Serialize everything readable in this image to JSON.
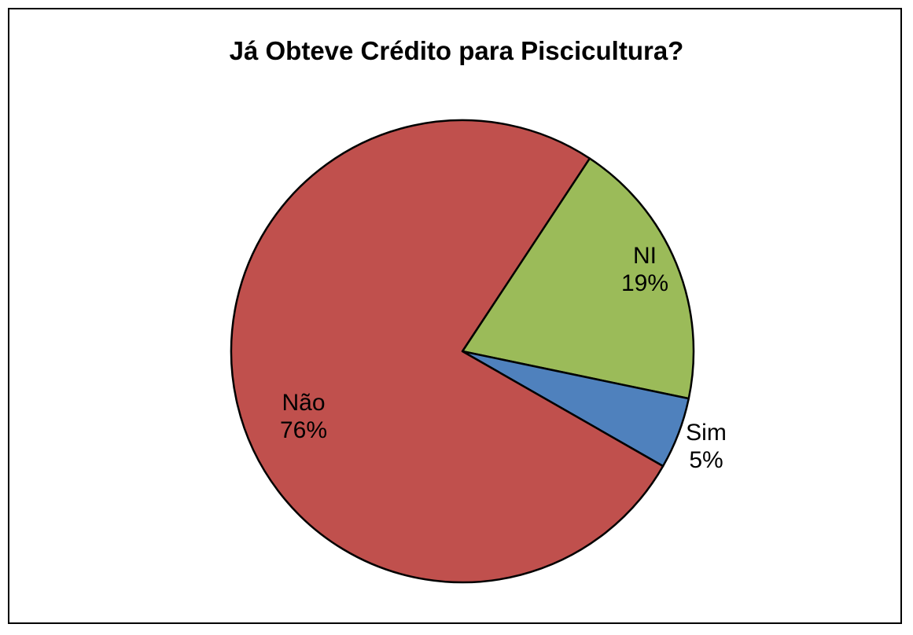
{
  "chart_data": {
    "type": "pie",
    "title": "Já Obteve Crédito para Piscicultura?",
    "legend": "none",
    "slices": [
      {
        "name": "NI",
        "value": 19,
        "label": "19%",
        "color": "#9bbb59"
      },
      {
        "name": "Sim",
        "value": 5,
        "label": "5%",
        "color": "#4f81bd"
      },
      {
        "name": "Não",
        "value": 76,
        "label": "76%",
        "color": "#c0504d"
      }
    ]
  }
}
